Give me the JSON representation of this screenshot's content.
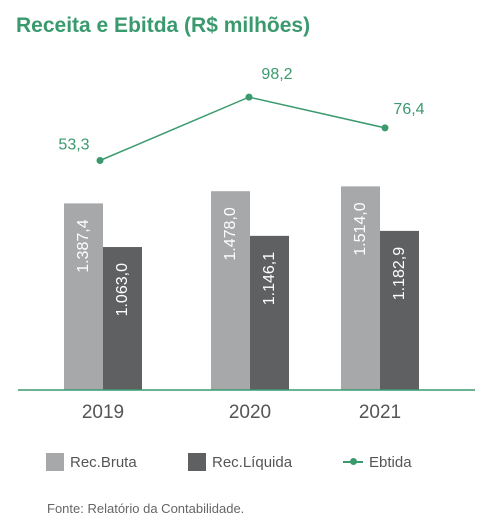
{
  "title": "Receita e Ebitda (R$ milhões)",
  "source": "Fonte: Relatório da Contabilidade.",
  "colors": {
    "title": "#3a9a6e",
    "bruta": "#a6a8aa",
    "liquida": "#5f6062",
    "ebitda": "#3a9a6e",
    "axis": "#3a9a6e"
  },
  "chart_data": {
    "type": "bar",
    "title": "Receita e Ebitda (R$ milhões)",
    "categories": [
      "2019",
      "2020",
      "2021"
    ],
    "series": [
      {
        "name": "Rec.Bruta",
        "type": "bar",
        "values": [
          1387.4,
          1478.0,
          1514.0
        ],
        "labels": [
          "1.387,4",
          "1.478,0",
          "1.514,0"
        ]
      },
      {
        "name": "Rec.Líquida",
        "type": "bar",
        "values": [
          1063.0,
          1146.1,
          1182.9
        ],
        "labels": [
          "1.063,0",
          "1.146,1",
          "1.182,9"
        ]
      },
      {
        "name": "Ebtida",
        "type": "line",
        "values": [
          53.3,
          98.2,
          76.4
        ],
        "labels": [
          "53,3",
          "98,2",
          "76,4"
        ]
      }
    ],
    "grid": false,
    "legend": "bottom"
  }
}
